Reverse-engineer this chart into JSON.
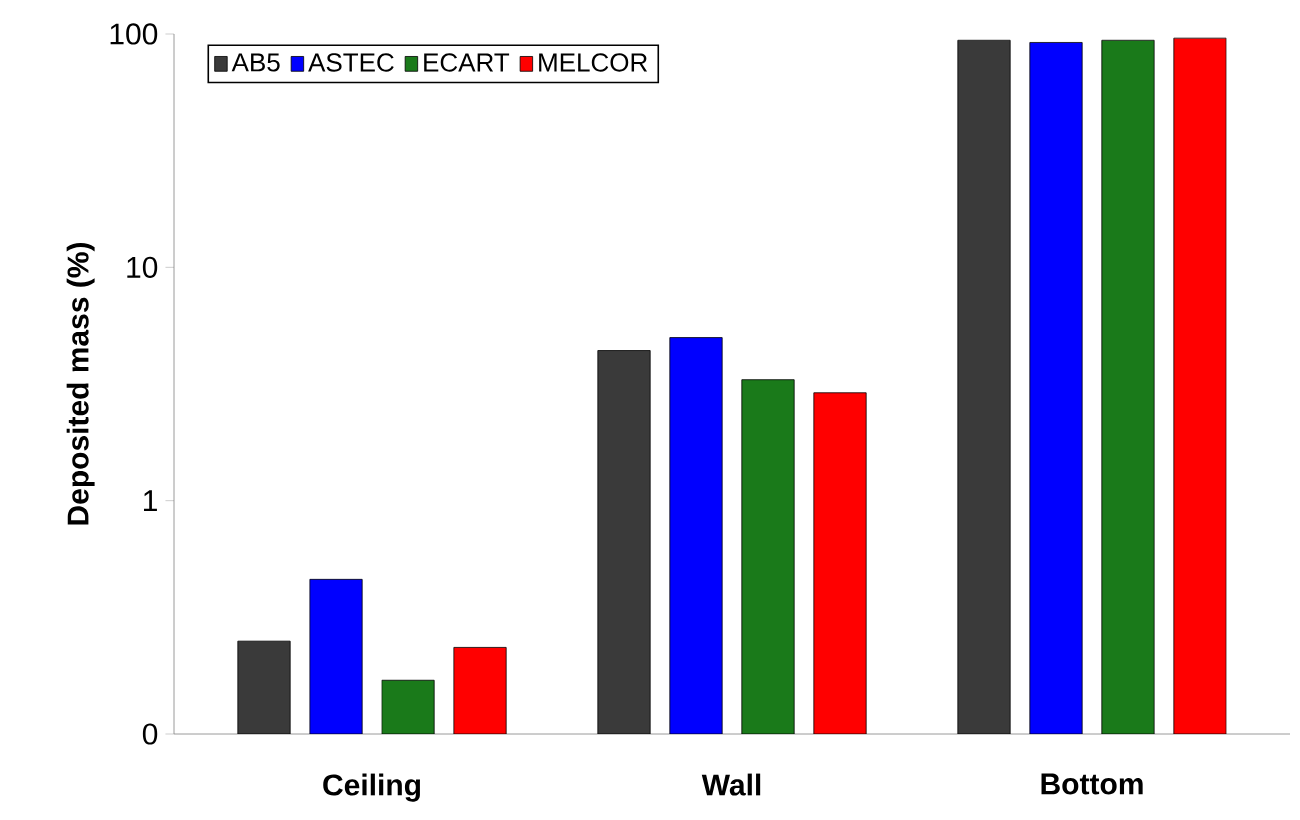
{
  "chart_data": {
    "type": "bar",
    "ylabel": "Deposited mass (%)",
    "categories": [
      "Ceiling",
      "Wall",
      "Bottom"
    ],
    "series": [
      {
        "name": "AB5",
        "color": "#3a3a3a",
        "values": [
          0.25,
          4.4,
          94
        ]
      },
      {
        "name": "ASTEC",
        "color": "#0000ff",
        "values": [
          0.46,
          5.0,
          92
        ]
      },
      {
        "name": "ECART",
        "color": "#1a7a1a",
        "values": [
          0.17,
          3.3,
          94
        ]
      },
      {
        "name": "MELCOR",
        "color": "#ff0000",
        "values": [
          0.235,
          2.9,
          96
        ]
      }
    ],
    "log": "y",
    "ylim": [
      0.1,
      100
    ],
    "yticks": [
      {
        "value": 0.1,
        "label": "0"
      },
      1,
      10,
      100
    ],
    "grid": false,
    "legend": "top left"
  }
}
